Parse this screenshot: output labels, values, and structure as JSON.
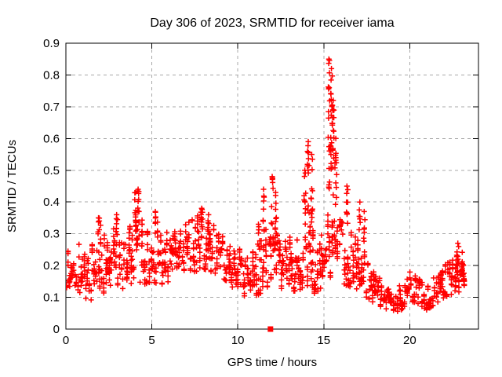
{
  "title": "Day 306 of 2023, SRMTID for receiver iama",
  "xlabel": "GPS time / hours",
  "ylabel": "SRMTID / TECUs",
  "chart_data": {
    "type": "scatter",
    "title": "Day 306 of 2023, SRMTID for receiver iama",
    "xlabel": "GPS time / hours",
    "ylabel": "SRMTID / TECUs",
    "marker": "plus",
    "marker_color": "#ff0000",
    "background_color": "#ffffff",
    "frame_color": "#000000",
    "grid": true,
    "grid_color": "#a8a8a8",
    "xlim": [
      0,
      24
    ],
    "ylim": [
      0,
      0.9
    ],
    "x_ticks": [
      0,
      5,
      10,
      15,
      20
    ],
    "y_ticks": [
      0,
      0.1,
      0.2,
      0.3,
      0.4,
      0.5,
      0.6,
      0.7,
      0.8,
      0.9
    ],
    "seed": 306,
    "band_note": "dense cloud envelope sampled every 0.5 h as [hour, min, max] TECUs",
    "band": [
      [
        0.0,
        0.13,
        0.25
      ],
      [
        0.5,
        0.14,
        0.23
      ],
      [
        1.0,
        0.1,
        0.3
      ],
      [
        1.5,
        0.09,
        0.27
      ],
      [
        2.0,
        0.13,
        0.33
      ],
      [
        2.5,
        0.09,
        0.26
      ],
      [
        3.0,
        0.14,
        0.36
      ],
      [
        3.5,
        0.12,
        0.26
      ],
      [
        4.0,
        0.16,
        0.4
      ],
      [
        4.5,
        0.14,
        0.34
      ],
      [
        5.0,
        0.15,
        0.33
      ],
      [
        5.5,
        0.14,
        0.34
      ],
      [
        6.0,
        0.15,
        0.3
      ],
      [
        6.5,
        0.17,
        0.31
      ],
      [
        7.0,
        0.19,
        0.33
      ],
      [
        7.5,
        0.18,
        0.35
      ],
      [
        8.0,
        0.19,
        0.37
      ],
      [
        8.5,
        0.18,
        0.33
      ],
      [
        9.0,
        0.17,
        0.31
      ],
      [
        9.5,
        0.14,
        0.28
      ],
      [
        10.0,
        0.12,
        0.26
      ],
      [
        10.5,
        0.09,
        0.22
      ],
      [
        11.0,
        0.1,
        0.25
      ],
      [
        11.5,
        0.12,
        0.3
      ],
      [
        12.0,
        0.15,
        0.35
      ],
      [
        12.5,
        0.1,
        0.26
      ],
      [
        13.0,
        0.12,
        0.29
      ],
      [
        13.5,
        0.12,
        0.28
      ],
      [
        14.0,
        0.14,
        0.34
      ],
      [
        14.5,
        0.11,
        0.3
      ],
      [
        15.0,
        0.14,
        0.34
      ],
      [
        15.5,
        0.17,
        0.38
      ],
      [
        16.0,
        0.15,
        0.34
      ],
      [
        16.5,
        0.13,
        0.31
      ],
      [
        17.0,
        0.12,
        0.28
      ],
      [
        17.5,
        0.1,
        0.23
      ],
      [
        18.0,
        0.08,
        0.18
      ],
      [
        18.5,
        0.06,
        0.14
      ],
      [
        19.0,
        0.05,
        0.12
      ],
      [
        19.5,
        0.06,
        0.14
      ],
      [
        20.0,
        0.09,
        0.18
      ],
      [
        20.5,
        0.08,
        0.16
      ],
      [
        21.0,
        0.06,
        0.13
      ],
      [
        21.5,
        0.08,
        0.17
      ],
      [
        22.0,
        0.1,
        0.2
      ],
      [
        22.5,
        0.11,
        0.22
      ],
      [
        23.0,
        0.12,
        0.25
      ],
      [
        23.2,
        0.14,
        0.22
      ]
    ],
    "spikes_note": "sparse vertical outlier columns as [hour, min, max] TECUs",
    "spikes": [
      [
        1.9,
        0.28,
        0.35
      ],
      [
        2.95,
        0.28,
        0.36
      ],
      [
        4.05,
        0.3,
        0.43
      ],
      [
        4.2,
        0.32,
        0.44
      ],
      [
        5.2,
        0.3,
        0.37
      ],
      [
        7.9,
        0.32,
        0.38
      ],
      [
        8.3,
        0.3,
        0.36
      ],
      [
        11.2,
        0.26,
        0.33
      ],
      [
        11.5,
        0.3,
        0.44
      ],
      [
        12.0,
        0.32,
        0.48
      ],
      [
        12.2,
        0.3,
        0.43
      ],
      [
        13.9,
        0.34,
        0.5
      ],
      [
        14.1,
        0.36,
        0.59
      ],
      [
        14.3,
        0.33,
        0.55
      ],
      [
        15.3,
        0.44,
        0.85
      ],
      [
        15.45,
        0.5,
        0.82
      ],
      [
        15.55,
        0.42,
        0.72
      ],
      [
        15.7,
        0.38,
        0.6
      ],
      [
        16.35,
        0.3,
        0.45
      ],
      [
        17.1,
        0.3,
        0.4
      ],
      [
        17.35,
        0.27,
        0.37
      ],
      [
        22.8,
        0.2,
        0.27
      ]
    ],
    "outliers": [
      {
        "x": 11.9,
        "y": 0,
        "marker": "filled-square"
      }
    ]
  }
}
